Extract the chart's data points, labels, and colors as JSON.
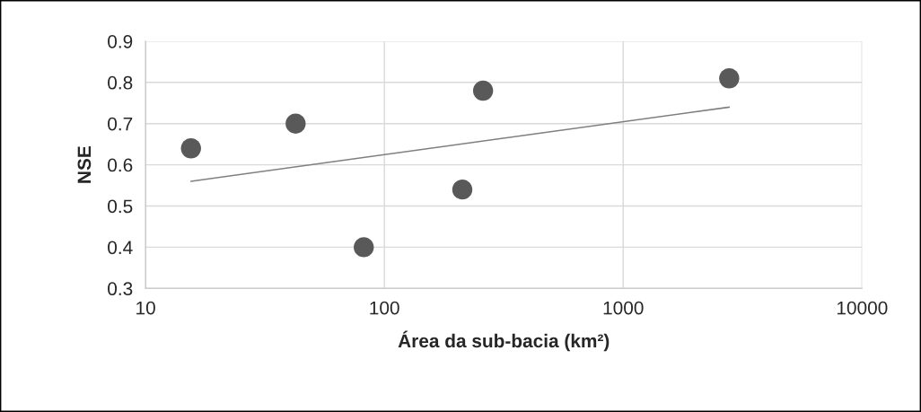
{
  "chart_data": {
    "type": "scatter",
    "xlabel": "Área da sub-bacia (km²)",
    "ylabel": "NSE",
    "log": "x",
    "xlim": [
      10,
      10000
    ],
    "xticks": [
      10,
      100,
      1000,
      10000
    ],
    "ylim": [
      0.3,
      0.9
    ],
    "yticks": [
      0.3,
      0.4,
      0.5,
      0.6,
      0.7,
      0.8,
      0.9
    ],
    "grid": true,
    "series": [
      {
        "marker": "circle",
        "color": "#595959",
        "x": [
          15.5,
          42.5,
          82,
          212,
          259,
          2778
        ],
        "values": [
          0.64,
          0.7,
          0.4,
          0.54,
          0.78,
          0.81
        ]
      },
      {
        "type": "line",
        "color": "#7f7f7f",
        "x": [
          15.5,
          2778
        ],
        "values": [
          0.56,
          0.74
        ],
        "line_style": "solid"
      }
    ]
  }
}
